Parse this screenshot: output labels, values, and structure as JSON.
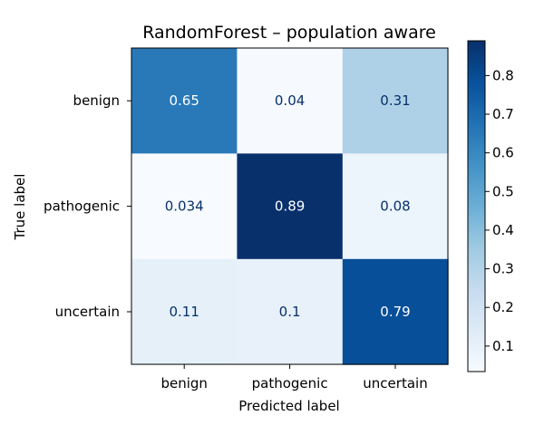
{
  "chart_data": {
    "type": "heatmap",
    "title": "RandomForest – population aware",
    "xlabel": "Predicted label",
    "ylabel": "True label",
    "x_categories": [
      "benign",
      "pathogenic",
      "uncertain"
    ],
    "y_categories": [
      "benign",
      "pathogenic",
      "uncertain"
    ],
    "values": [
      [
        0.65,
        0.04,
        0.31
      ],
      [
        0.034,
        0.89,
        0.08
      ],
      [
        0.11,
        0.1,
        0.79
      ]
    ],
    "value_labels": [
      [
        "0.65",
        "0.04",
        "0.31"
      ],
      [
        "0.034",
        "0.89",
        "0.08"
      ],
      [
        "0.11",
        "0.1",
        "0.79"
      ]
    ],
    "colormap": "Blues",
    "colorbar": {
      "range": [
        0.034,
        0.89
      ],
      "ticks": [
        0.1,
        0.2,
        0.3,
        0.4,
        0.5,
        0.6,
        0.7,
        0.8
      ]
    }
  }
}
